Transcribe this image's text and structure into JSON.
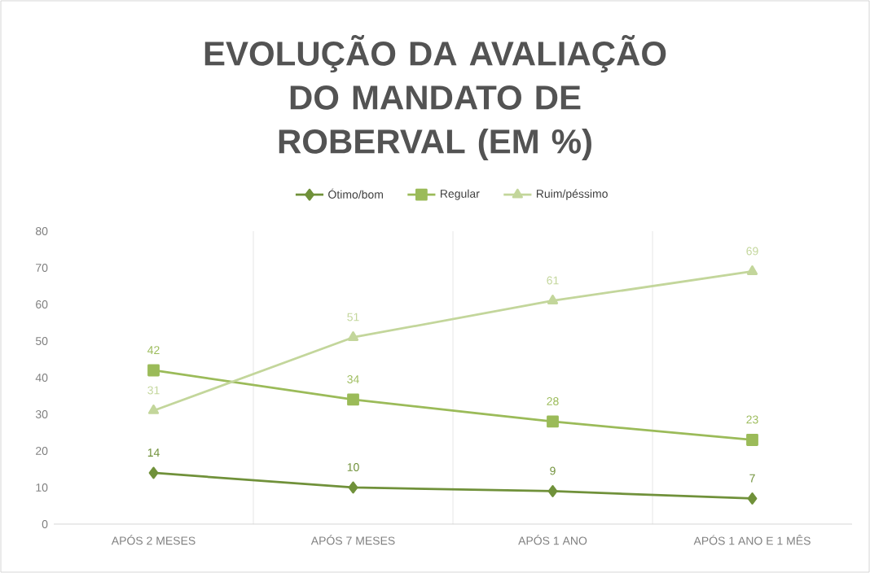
{
  "chart_data": {
    "type": "line",
    "title": "EVOLUÇÃO DA AVALIAÇÃO DO MANDATO DE ROBERVAL (EM %)",
    "categories": [
      "APÓS 2 MESES",
      "APÓS 7 MESES",
      "APÓS 1 ANO",
      "APÓS 1 ANO E 1 MÊS"
    ],
    "series": [
      {
        "name": "Ótimo/bom",
        "color": "#70913a",
        "marker": "diamond",
        "values": [
          14,
          10,
          9,
          7
        ]
      },
      {
        "name": "Regular",
        "color": "#9bbb59",
        "marker": "square",
        "values": [
          42,
          34,
          28,
          23
        ]
      },
      {
        "name": "Ruim/péssimo",
        "color": "#c3d69b",
        "marker": "triangle",
        "values": [
          31,
          51,
          61,
          69
        ]
      }
    ],
    "ylim": [
      0,
      80
    ],
    "yticks": [
      0,
      10,
      20,
      30,
      40,
      50,
      60,
      70,
      80
    ],
    "grid": "x",
    "legend": "top",
    "data_labels": true,
    "line_style": "solid"
  }
}
